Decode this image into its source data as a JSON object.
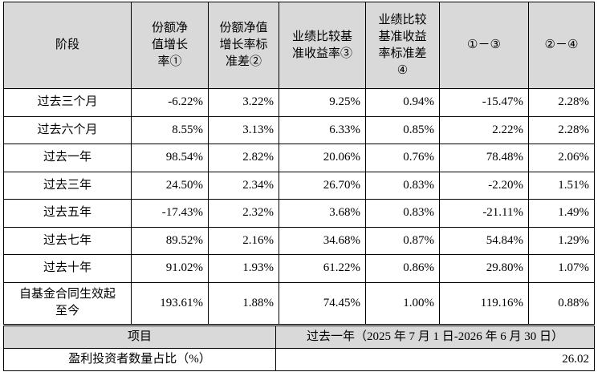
{
  "table": {
    "header": [
      [
        "阶段"
      ],
      [
        "份额净",
        "值增长",
        "率①"
      ],
      [
        "份额净值",
        "增长率标",
        "准差②"
      ],
      [
        "业绩比较基",
        "准收益率③"
      ],
      [
        "业绩比较",
        "基准收益",
        "率标准差",
        "④"
      ],
      [
        "①－③"
      ],
      [
        "②－④"
      ]
    ],
    "rows": [
      [
        [
          "过去三个月"
        ],
        "-6.22%",
        "3.22%",
        "9.25%",
        "0.94%",
        "-15.47%",
        "2.28%"
      ],
      [
        [
          "过去六个月"
        ],
        "8.55%",
        "3.13%",
        "6.33%",
        "0.85%",
        "2.22%",
        "2.28%"
      ],
      [
        [
          "过去一年"
        ],
        "98.54%",
        "2.82%",
        "20.06%",
        "0.76%",
        "78.48%",
        "2.06%"
      ],
      [
        [
          "过去三年"
        ],
        "24.50%",
        "2.34%",
        "26.70%",
        "0.83%",
        "-2.20%",
        "1.51%"
      ],
      [
        [
          "过去五年"
        ],
        "-17.43%",
        "2.32%",
        "3.68%",
        "0.83%",
        "-21.11%",
        "1.49%"
      ],
      [
        [
          "过去七年"
        ],
        "89.52%",
        "2.16%",
        "34.68%",
        "0.87%",
        "54.84%",
        "1.29%"
      ],
      [
        [
          "过去十年"
        ],
        "91.02%",
        "1.93%",
        "61.22%",
        "0.86%",
        "29.80%",
        "1.07%"
      ],
      [
        [
          "自基金合同生效起",
          "至今"
        ],
        "193.61%",
        "1.88%",
        "74.45%",
        "1.00%",
        "119.16%",
        "0.88%"
      ]
    ]
  },
  "summary": {
    "header": [
      "项目",
      "过去一年（2025 年 7 月 1 日-2026 年 6 月 30 日）"
    ],
    "rows": [
      [
        "盈利投资者数量占比（%）",
        "26.02"
      ]
    ]
  }
}
